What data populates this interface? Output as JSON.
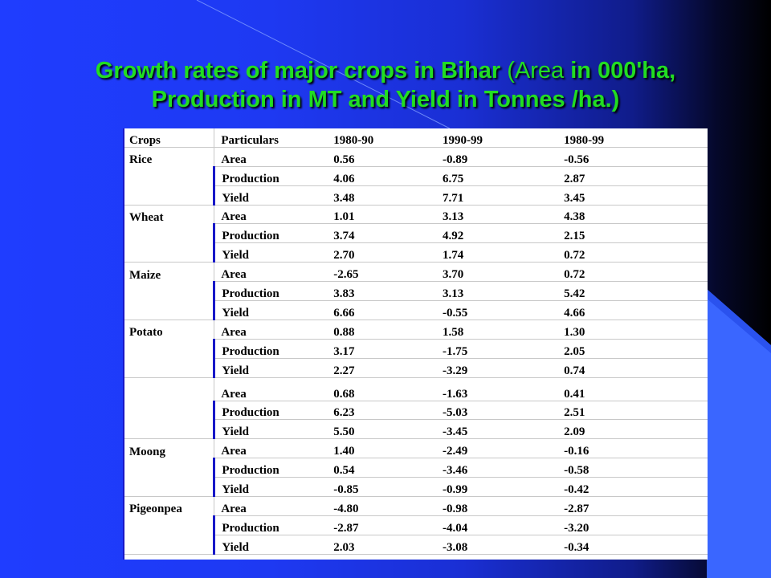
{
  "title": {
    "part1": "Growth rates of major crops in Bihar ",
    "part2": "(Area",
    "part3": " in 000'ha,",
    "part4": "Production in MT and Yield in Tonnes /ha.)"
  },
  "table": {
    "headers": [
      "Crops",
      "Particulars",
      "1980-90",
      "1990-99",
      "1980-99"
    ],
    "groups": [
      {
        "crop": "Rice",
        "rows": [
          [
            "Area",
            "0.56",
            "-0.89",
            "-0.56"
          ],
          [
            "Production",
            "4.06",
            "6.75",
            "2.87"
          ],
          [
            "Yield",
            "3.48",
            "7.71",
            "3.45"
          ]
        ]
      },
      {
        "crop": "Wheat",
        "rows": [
          [
            "Area",
            "1.01",
            "3.13",
            "4.38"
          ],
          [
            "Production",
            "3.74",
            "4.92",
            "2.15"
          ],
          [
            "Yield",
            "2.70",
            "1.74",
            "0.72"
          ]
        ]
      },
      {
        "crop": "Maize",
        "rows": [
          [
            "Area",
            "-2.65",
            "3.70",
            "0.72"
          ],
          [
            "Production",
            "3.83",
            "3.13",
            "5.42"
          ],
          [
            "Yield",
            "6.66",
            "-0.55",
            "4.66"
          ]
        ]
      },
      {
        "crop": "Potato",
        "rows": [
          [
            "Area",
            "0.88",
            "1.58",
            "1.30"
          ],
          [
            "Production",
            "3.17",
            "-1.75",
            "2.05"
          ],
          [
            "Yield",
            "2.27",
            "-3.29",
            "0.74"
          ]
        ]
      },
      {
        "crop": "",
        "rows": [
          [
            "Area",
            "0.68",
            "-1.63",
            "0.41"
          ],
          [
            "Production",
            "6.23",
            "-5.03",
            "2.51"
          ],
          [
            "Yield",
            "5.50",
            "-3.45",
            "2.09"
          ]
        ]
      },
      {
        "crop": "Moong",
        "rows": [
          [
            "Area",
            "1.40",
            "-2.49",
            "-0.16"
          ],
          [
            "Production",
            "0.54",
            "-3.46",
            "-0.58"
          ],
          [
            "Yield",
            "-0.85",
            "-0.99",
            "-0.42"
          ]
        ]
      },
      {
        "crop": "Pigeonpea",
        "rows": [
          [
            "Area",
            "-4.80",
            "-0.98",
            "-2.87"
          ],
          [
            "Production",
            "-2.87",
            "-4.04",
            "-3.20"
          ],
          [
            "Yield",
            "2.03",
            "-3.08",
            "-0.34"
          ]
        ]
      }
    ]
  },
  "colors": {
    "title": "#22dd22",
    "background_blue": "#1f3dff",
    "accent_right": "#3a66ff",
    "table_bg": "#ffffff"
  }
}
